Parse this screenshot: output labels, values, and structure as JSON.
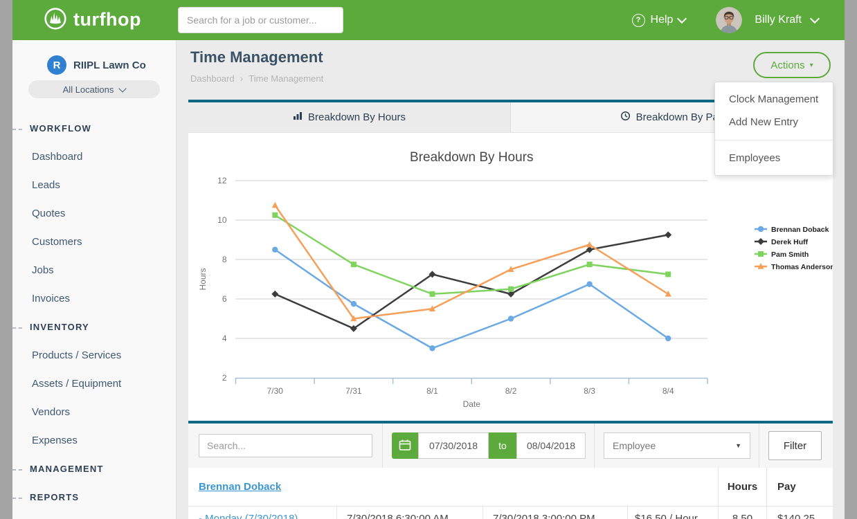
{
  "header": {
    "brand": "turfhop",
    "search_placeholder": "Search for a job or customer...",
    "help_label": "Help",
    "user_name": "Billy Kraft"
  },
  "sidebar": {
    "company": "RIIPL Lawn Co",
    "company_initial": "R",
    "locations_label": "All Locations",
    "sections": [
      {
        "label": "WORKFLOW",
        "items": [
          "Dashboard",
          "Leads",
          "Quotes",
          "Customers",
          "Jobs",
          "Invoices"
        ]
      },
      {
        "label": "INVENTORY",
        "items": [
          "Products / Services",
          "Assets / Equipment",
          "Vendors",
          "Expenses"
        ]
      },
      {
        "label": "MANAGEMENT",
        "items": []
      },
      {
        "label": "REPORTS",
        "items": []
      }
    ]
  },
  "page": {
    "title": "Time Management",
    "breadcrumb": [
      "Dashboard",
      "Time Management"
    ],
    "actions_label": "Actions",
    "actions_menu": [
      "Clock Management",
      "Add New Entry",
      "Employees"
    ]
  },
  "tabs": [
    {
      "label": "Breakdown By Hours",
      "active": true
    },
    {
      "label": "Breakdown By Pay",
      "active": false
    }
  ],
  "chart_data": {
    "type": "line",
    "title": "Breakdown By Hours",
    "xlabel": "Date",
    "ylabel": "Hours",
    "x": [
      "7/30",
      "7/31",
      "8/1",
      "8/2",
      "8/3",
      "8/4"
    ],
    "ylim": [
      2,
      12
    ],
    "yticks": [
      2,
      4,
      6,
      8,
      10,
      12
    ],
    "grid": true,
    "legend_position": "right",
    "series": [
      {
        "name": "Brennan Doback",
        "color": "#6aa9e3",
        "marker": "circle",
        "values": [
          8.5,
          5.75,
          3.5,
          5.0,
          6.75,
          4.0
        ]
      },
      {
        "name": "Derek Huff",
        "color": "#3c3c3c",
        "marker": "diamond",
        "values": [
          6.25,
          4.5,
          7.25,
          6.25,
          8.5,
          9.25
        ]
      },
      {
        "name": "Pam Smith",
        "color": "#7fd35f",
        "marker": "square",
        "values": [
          10.25,
          7.75,
          6.25,
          6.5,
          7.75,
          7.25
        ]
      },
      {
        "name": "Thomas Anderson",
        "color": "#f5a05a",
        "marker": "triangle",
        "values": [
          10.75,
          5.0,
          5.5,
          7.5,
          8.75,
          6.25
        ]
      }
    ]
  },
  "filter_bar": {
    "search_placeholder": "Search...",
    "date_from": "07/30/2018",
    "date_to_label": "to",
    "date_to": "08/04/2018",
    "employee_select": "Employee",
    "filter_button": "Filter"
  },
  "table": {
    "group_header": "Brennan Doback",
    "columns": {
      "hours": "Hours",
      "pay": "Pay"
    },
    "rows": [
      {
        "day": "- Monday (7/30/2018)",
        "clock_in": "7/30/2018 6:30:00 AM",
        "clock_out": "7/30/2018 3:00:00 PM",
        "rate": "$16.50 / Hour",
        "hours": "8.50",
        "pay": "$140.25"
      }
    ]
  },
  "icons": {
    "help": "?",
    "caret_down": "▾",
    "select_caret": "▼",
    "breadcrumb_sep": "›"
  },
  "colors": {
    "header_green": "#5caa3c",
    "teal_accent": "#0e6882",
    "link_blue": "#3a96d2",
    "logo_blue": "#2f80d0"
  }
}
